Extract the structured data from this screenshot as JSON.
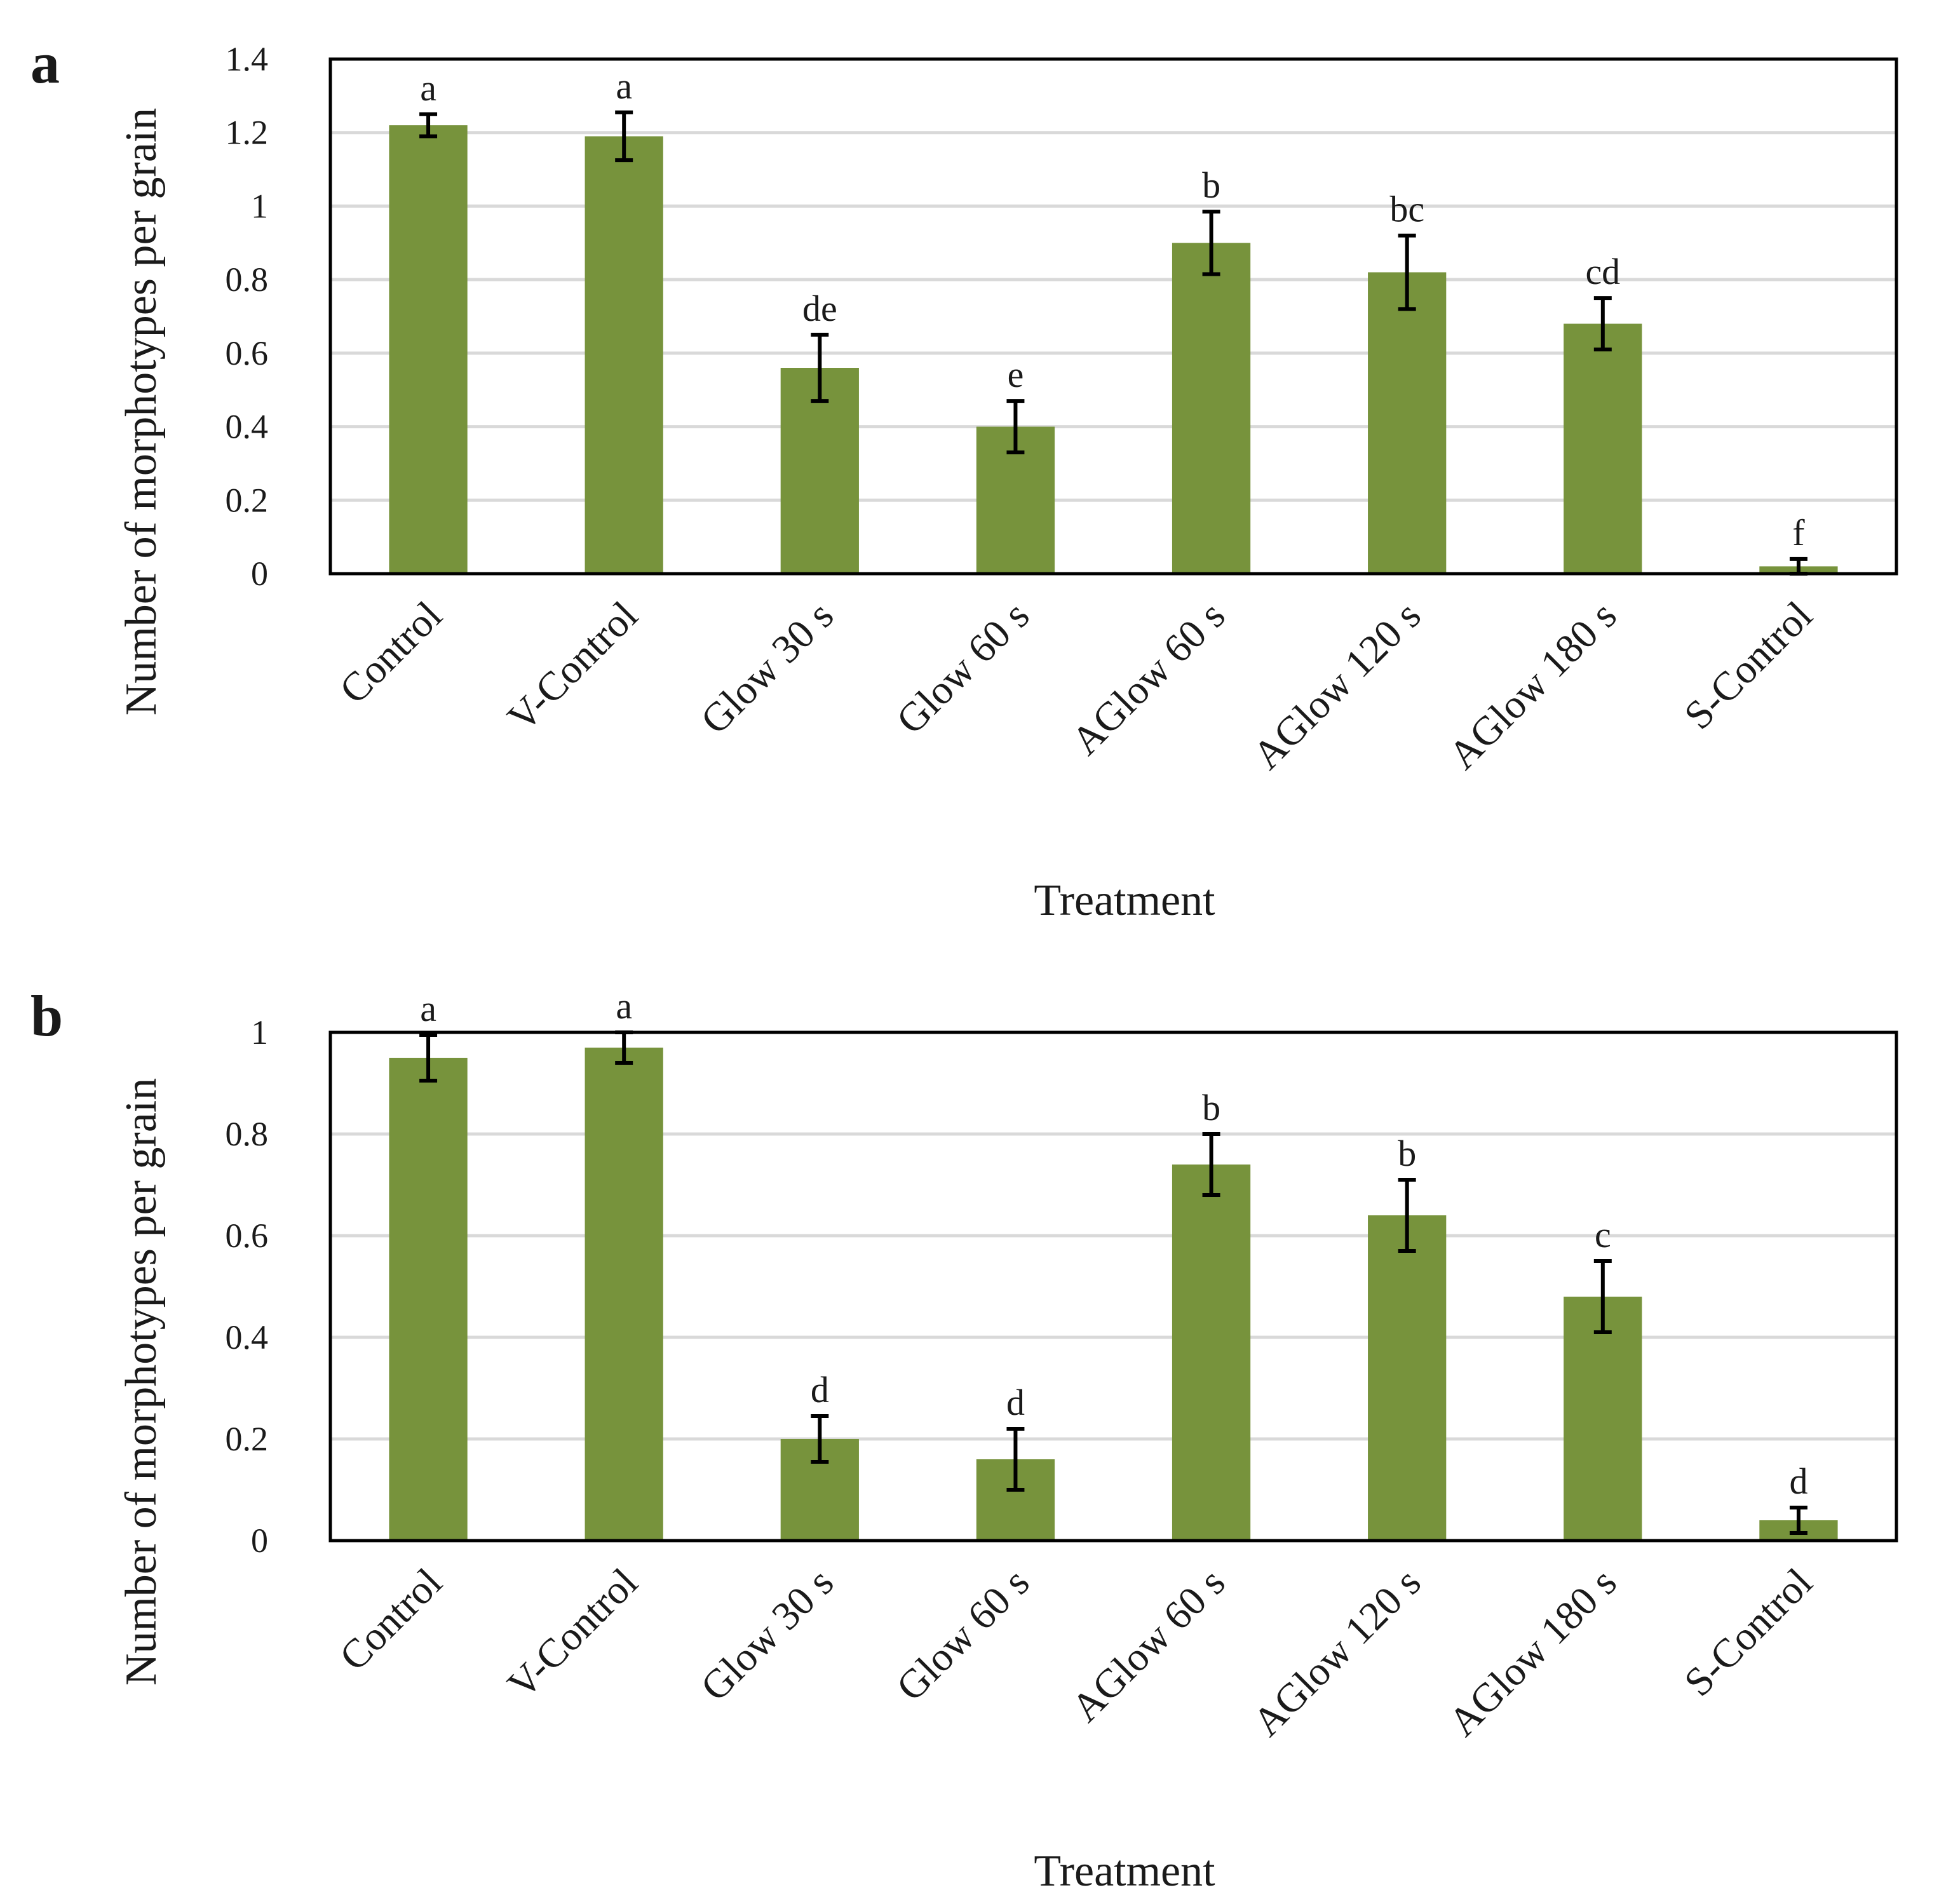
{
  "colors": {
    "bar": "#77933c",
    "grid": "#d9d9d9",
    "frame": "#000000"
  },
  "chart_data": [
    {
      "panel": "a",
      "type": "bar",
      "xlabel": "Treatment",
      "ylabel": "Number of morphotypes per grain",
      "ylim": [
        0,
        1.4
      ],
      "yticks": [
        0,
        0.2,
        0.4,
        0.6,
        0.8,
        1,
        1.2,
        1.4
      ],
      "ytick_labels": [
        "0",
        "0.2",
        "0.4",
        "0.6",
        "0.8",
        "1",
        "1.2",
        "1.4"
      ],
      "categories": [
        "Control",
        "V-Control",
        "Glow 30 s",
        "Glow 60 s",
        "AGlow 60 s",
        "AGlow 120 s",
        "AGlow 180 s",
        "S-Control"
      ],
      "values": [
        1.22,
        1.19,
        0.56,
        0.4,
        0.9,
        0.82,
        0.68,
        0.02
      ],
      "errors": [
        0.03,
        0.065,
        0.09,
        0.07,
        0.085,
        0.1,
        0.07,
        0.02
      ],
      "significance": [
        "a",
        "a",
        "de",
        "e",
        "b",
        "bc",
        "cd",
        "f"
      ]
    },
    {
      "panel": "b",
      "type": "bar",
      "xlabel": "Treatment",
      "ylabel": "Number of morphotypes per grain",
      "ylim": [
        0,
        1
      ],
      "yticks": [
        0,
        0.2,
        0.4,
        0.6,
        0.8,
        1
      ],
      "ytick_labels": [
        "0",
        "0.2",
        "0.4",
        "0.6",
        "0.8",
        "1"
      ],
      "categories": [
        "Control",
        "V-Control",
        "Glow 30 s",
        "Glow 60 s",
        "AGlow 60 s",
        "AGlow 120 s",
        "AGlow 180 s",
        "S-Control"
      ],
      "values": [
        0.95,
        0.97,
        0.2,
        0.16,
        0.74,
        0.64,
        0.48,
        0.04
      ],
      "errors": [
        0.045,
        0.03,
        0.045,
        0.06,
        0.06,
        0.07,
        0.07,
        0.025
      ],
      "significance": [
        "a",
        "a",
        "d",
        "d",
        "b",
        "b",
        "c",
        "d"
      ]
    }
  ]
}
